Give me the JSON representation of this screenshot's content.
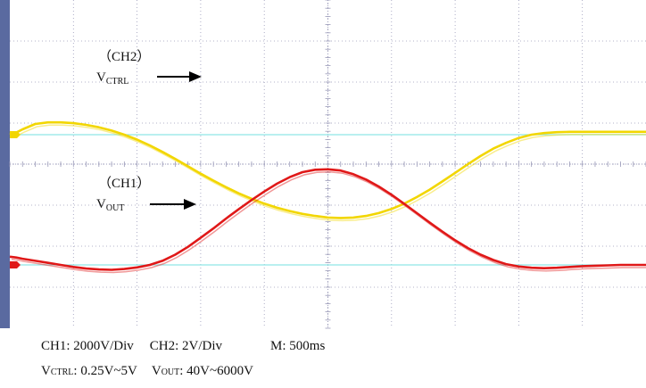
{
  "chart_data": {
    "type": "line",
    "title": "",
    "colors": {
      "ch1": "#e01818",
      "ch2": "#f2d600",
      "grid": "#9a9ab8",
      "ref_line": "#8fe8e8",
      "left_bar": "#5a6aa0"
    },
    "grid": true,
    "x_divisions": 10,
    "y_divisions": 8,
    "series": [
      {
        "name": "CH2",
        "channel": "ch2",
        "x": [
          0.0,
          0.1,
          0.2,
          0.4,
          0.6,
          0.8,
          1.0,
          1.2,
          1.4,
          1.6,
          1.8,
          2.0,
          2.2,
          2.4,
          2.6,
          2.8,
          3.0,
          3.2,
          3.4,
          3.6,
          3.8,
          4.0,
          4.2,
          4.4,
          4.6,
          4.8,
          5.0,
          5.2,
          5.4,
          5.6,
          5.8,
          6.0,
          6.2,
          6.4,
          6.6,
          6.8,
          7.0,
          7.2,
          7.4,
          7.6,
          7.8,
          8.0,
          8.2,
          8.4,
          8.6,
          8.8,
          9.0,
          9.2,
          9.4,
          9.6,
          9.8,
          10.0
        ],
        "values": [
          0.0,
          0.05,
          0.13,
          0.26,
          0.3,
          0.3,
          0.28,
          0.24,
          0.18,
          0.1,
          0.0,
          -0.12,
          -0.26,
          -0.42,
          -0.59,
          -0.77,
          -0.95,
          -1.12,
          -1.28,
          -1.43,
          -1.56,
          -1.68,
          -1.78,
          -1.86,
          -1.93,
          -1.98,
          -2.02,
          -2.03,
          -2.02,
          -1.98,
          -1.91,
          -1.81,
          -1.68,
          -1.52,
          -1.34,
          -1.14,
          -0.93,
          -0.72,
          -0.52,
          -0.34,
          -0.2,
          -0.08,
          0.0,
          0.04,
          0.06,
          0.07,
          0.07,
          0.07,
          0.07,
          0.07,
          0.07,
          0.07
        ]
      },
      {
        "name": "CH1",
        "channel": "ch1",
        "x": [
          0.0,
          0.1,
          0.2,
          0.4,
          0.6,
          0.8,
          1.0,
          1.2,
          1.4,
          1.6,
          1.8,
          2.0,
          2.2,
          2.4,
          2.6,
          2.8,
          3.0,
          3.2,
          3.4,
          3.6,
          3.8,
          4.0,
          4.2,
          4.4,
          4.6,
          4.8,
          5.0,
          5.2,
          5.4,
          5.6,
          5.8,
          6.0,
          6.2,
          6.4,
          6.6,
          6.8,
          7.0,
          7.2,
          7.4,
          7.6,
          7.8,
          8.0,
          8.2,
          8.4,
          8.6,
          8.8,
          9.0,
          9.2,
          9.4,
          9.6,
          9.8,
          10.0
        ],
        "values": [
          0.2,
          0.18,
          0.15,
          0.1,
          0.05,
          0.0,
          -0.05,
          -0.09,
          -0.11,
          -0.12,
          -0.1,
          -0.06,
          0.0,
          0.1,
          0.25,
          0.44,
          0.66,
          0.89,
          1.13,
          1.36,
          1.58,
          1.79,
          1.98,
          2.14,
          2.26,
          2.32,
          2.33,
          2.3,
          2.21,
          2.08,
          1.91,
          1.71,
          1.49,
          1.26,
          1.03,
          0.81,
          0.6,
          0.41,
          0.25,
          0.12,
          0.02,
          -0.04,
          -0.07,
          -0.08,
          -0.07,
          -0.05,
          -0.03,
          -0.02,
          -0.01,
          0.0,
          0.0,
          0.0
        ]
      }
    ]
  },
  "caption": {
    "line1": {
      "ch1_scale": "CH1: 2000V/Div",
      "ch2_scale": "CH2: 2V/Div",
      "time_scale": "M: 500ms"
    },
    "line2": {
      "vctrl_prefix": "V",
      "vctrl_sub": "CTRL",
      "vctrl_range": ": 0.25V~5V",
      "vout_prefix": "V",
      "vout_sub": "OUT",
      "vout_range": ": 40V~6000V"
    }
  },
  "annotations": {
    "ch2_label": "（CH2）",
    "ch2_v": "V",
    "ch2_sub": "CTRL",
    "ch1_label": "（CH1）",
    "ch1_v": "V",
    "ch1_sub": "OUT"
  }
}
